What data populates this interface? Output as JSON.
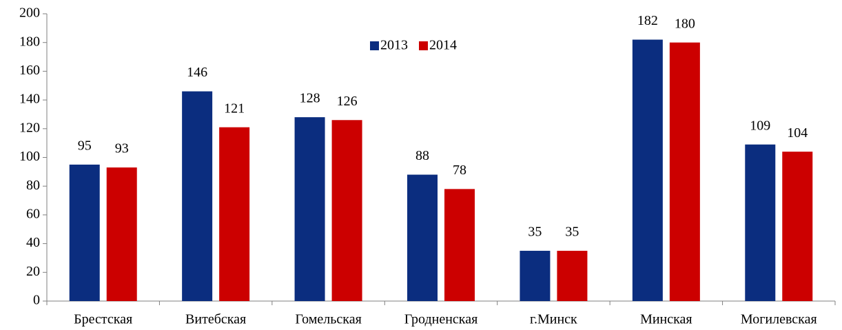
{
  "chart_data": {
    "type": "bar",
    "categories": [
      "Брестская",
      "Витебская",
      "Гомельская",
      "Гродненская",
      "г.Минск",
      "Минская",
      "Могилевская"
    ],
    "series": [
      {
        "name": "2013",
        "color": "#0b2d7f",
        "values": [
          95,
          146,
          128,
          88,
          35,
          182,
          109
        ]
      },
      {
        "name": "2014",
        "color": "#cc0000",
        "values": [
          93,
          121,
          126,
          78,
          35,
          180,
          104
        ]
      }
    ],
    "ylim": [
      0,
      200
    ],
    "yticks": [
      0,
      20,
      40,
      60,
      80,
      100,
      120,
      140,
      160,
      180,
      200
    ],
    "grid": false,
    "legend": "top"
  }
}
